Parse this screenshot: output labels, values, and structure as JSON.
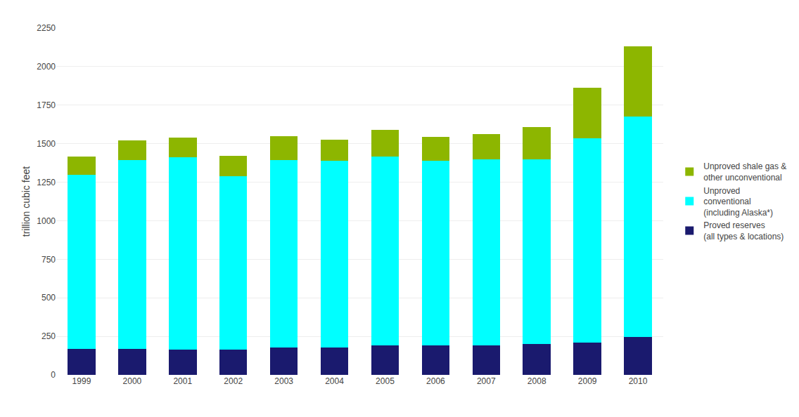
{
  "chart_data": {
    "type": "bar",
    "stacked": true,
    "categories": [
      "1999",
      "2000",
      "2001",
      "2002",
      "2003",
      "2004",
      "2005",
      "2006",
      "2007",
      "2008",
      "2009",
      "2010"
    ],
    "series": [
      {
        "name": "Proved reserves\n(all types & locations)",
        "color": "#1a1a6e",
        "values": [
          170,
          170,
          165,
          165,
          177,
          177,
          193,
          193,
          193,
          200,
          210,
          245
        ]
      },
      {
        "name": "Unproved\nconventional\n(including Alaska*)",
        "color": "#00ffff",
        "values": [
          1130,
          1225,
          1245,
          1125,
          1215,
          1210,
          1225,
          1195,
          1205,
          1200,
          1325,
          1430
        ]
      },
      {
        "name": "Unproved shale gas &\nother unconventional",
        "color": "#8db600",
        "values": [
          115,
          125,
          130,
          130,
          155,
          140,
          170,
          155,
          165,
          210,
          330,
          455
        ]
      }
    ],
    "ylabel": "trillion cubic feet",
    "ylim": [
      0,
      2250
    ],
    "yticks": [
      0,
      250,
      500,
      750,
      1000,
      1250,
      1500,
      1750,
      2000,
      2250
    ],
    "grid": true,
    "legend": "right"
  }
}
